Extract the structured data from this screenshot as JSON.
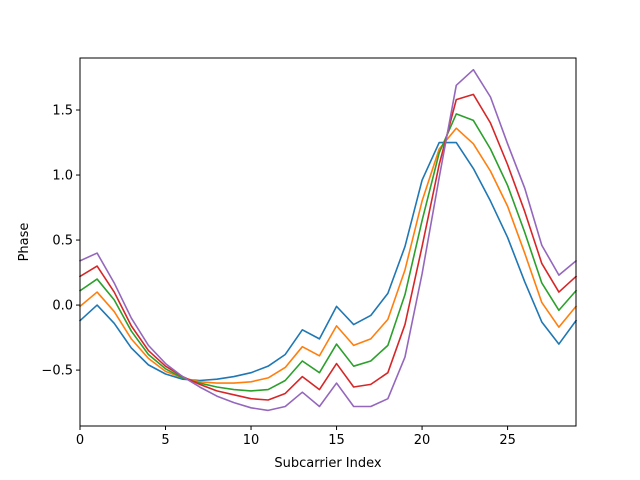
{
  "chart_data": {
    "type": "line",
    "title": "",
    "xlabel": "Subcarrier Index",
    "ylabel": "Phase",
    "xlim": [
      0,
      29
    ],
    "ylim": [
      -0.93,
      1.9
    ],
    "xticks": [
      0,
      5,
      10,
      15,
      20,
      25
    ],
    "yticks": [
      -0.5,
      0.0,
      0.5,
      1.0,
      1.5
    ],
    "grid": false,
    "legend": "none",
    "x": [
      0,
      1,
      2,
      3,
      4,
      5,
      6,
      7,
      8,
      9,
      10,
      11,
      12,
      13,
      14,
      15,
      16,
      17,
      18,
      19,
      20,
      21,
      22,
      23,
      24,
      25,
      26,
      27,
      28,
      29
    ],
    "series": [
      {
        "color": "#1f77b4",
        "values": [
          -0.12,
          0.0,
          -0.14,
          -0.33,
          -0.46,
          -0.53,
          -0.57,
          -0.58,
          -0.57,
          -0.55,
          -0.52,
          -0.47,
          -0.38,
          -0.19,
          -0.26,
          -0.01,
          -0.15,
          -0.08,
          0.09,
          0.45,
          0.96,
          1.25,
          1.25,
          1.05,
          0.8,
          0.52,
          0.18,
          -0.13,
          -0.3,
          -0.12
        ]
      },
      {
        "color": "#ff7f0e",
        "values": [
          -0.01,
          0.1,
          -0.05,
          -0.26,
          -0.41,
          -0.51,
          -0.56,
          -0.59,
          -0.6,
          -0.6,
          -0.59,
          -0.56,
          -0.48,
          -0.32,
          -0.39,
          -0.16,
          -0.31,
          -0.26,
          -0.11,
          0.27,
          0.8,
          1.2,
          1.36,
          1.24,
          1.03,
          0.76,
          0.4,
          0.02,
          -0.17,
          -0.01
        ]
      },
      {
        "color": "#2ca02c",
        "values": [
          0.11,
          0.2,
          0.04,
          -0.2,
          -0.38,
          -0.49,
          -0.56,
          -0.6,
          -0.63,
          -0.65,
          -0.66,
          -0.65,
          -0.58,
          -0.43,
          -0.52,
          -0.3,
          -0.47,
          -0.43,
          -0.31,
          0.08,
          0.65,
          1.17,
          1.47,
          1.42,
          1.2,
          0.92,
          0.56,
          0.17,
          -0.04,
          0.11
        ]
      },
      {
        "color": "#d62728",
        "values": [
          0.22,
          0.3,
          0.1,
          -0.16,
          -0.35,
          -0.47,
          -0.55,
          -0.61,
          -0.66,
          -0.69,
          -0.72,
          -0.73,
          -0.68,
          -0.55,
          -0.65,
          -0.45,
          -0.63,
          -0.61,
          -0.52,
          -0.15,
          0.45,
          1.08,
          1.58,
          1.62,
          1.4,
          1.08,
          0.72,
          0.32,
          0.1,
          0.22
        ]
      },
      {
        "color": "#9467bd",
        "values": [
          0.34,
          0.4,
          0.17,
          -0.1,
          -0.31,
          -0.45,
          -0.55,
          -0.63,
          -0.7,
          -0.75,
          -0.79,
          -0.81,
          -0.78,
          -0.67,
          -0.78,
          -0.6,
          -0.78,
          -0.78,
          -0.72,
          -0.4,
          0.24,
          0.98,
          1.69,
          1.81,
          1.6,
          1.24,
          0.9,
          0.46,
          0.23,
          0.34
        ]
      }
    ]
  }
}
